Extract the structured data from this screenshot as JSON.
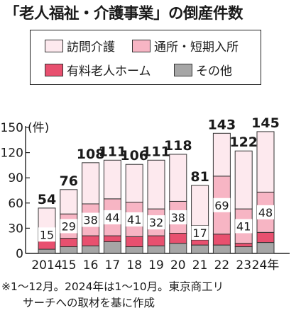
{
  "title": "「老人福祉・介護事業」の倒産件数",
  "legend": [
    {
      "label": "訪問介護",
      "color": "#fde9ee"
    },
    {
      "label": "通所・短期入所",
      "color": "#f7b5c4"
    },
    {
      "label": "有料老人ホーム",
      "color": "#e8506f"
    },
    {
      "label": "その他",
      "color": "#a6a6a6"
    }
  ],
  "footnote": {
    "line1": "※1～12月。2024年は1～10月。東京商工リ",
    "line2": "サーチへの取材を基に作成"
  },
  "chart_data": {
    "type": "bar",
    "stacked": true,
    "ylabel": "(件)",
    "ylim": [
      0,
      150
    ],
    "yticks": [
      0,
      30,
      60,
      90,
      120,
      150
    ],
    "categories": [
      "2014",
      "15",
      "16",
      "17",
      "18",
      "19",
      "20",
      "21",
      "22",
      "23",
      "24年"
    ],
    "totals": [
      54,
      76,
      108,
      111,
      106,
      111,
      118,
      81,
      143,
      122,
      145
    ],
    "series": [
      {
        "name": "その他",
        "color": "#a6a6a6",
        "values": [
          5,
          8,
          9,
          14,
          8,
          9,
          12,
          10,
          10,
          8,
          13
        ]
      },
      {
        "name": "有料老人ホーム",
        "color": "#e8506f",
        "values": [
          10,
          10,
          12,
          7,
          12,
          12,
          12,
          6,
          13,
          4,
          12
        ]
      },
      {
        "name": "通所・短期入所",
        "color": "#f7b5c4",
        "values": [
          15,
          29,
          38,
          44,
          41,
          32,
          38,
          17,
          69,
          41,
          48
        ]
      },
      {
        "name": "訪問介護",
        "color": "#fde9ee",
        "values": [
          24,
          29,
          49,
          46,
          45,
          58,
          56,
          48,
          51,
          69,
          72
        ]
      }
    ],
    "inner_labels": [
      15,
      29,
      38,
      44,
      41,
      32,
      38,
      17,
      69,
      41,
      48
    ],
    "grid": false
  }
}
